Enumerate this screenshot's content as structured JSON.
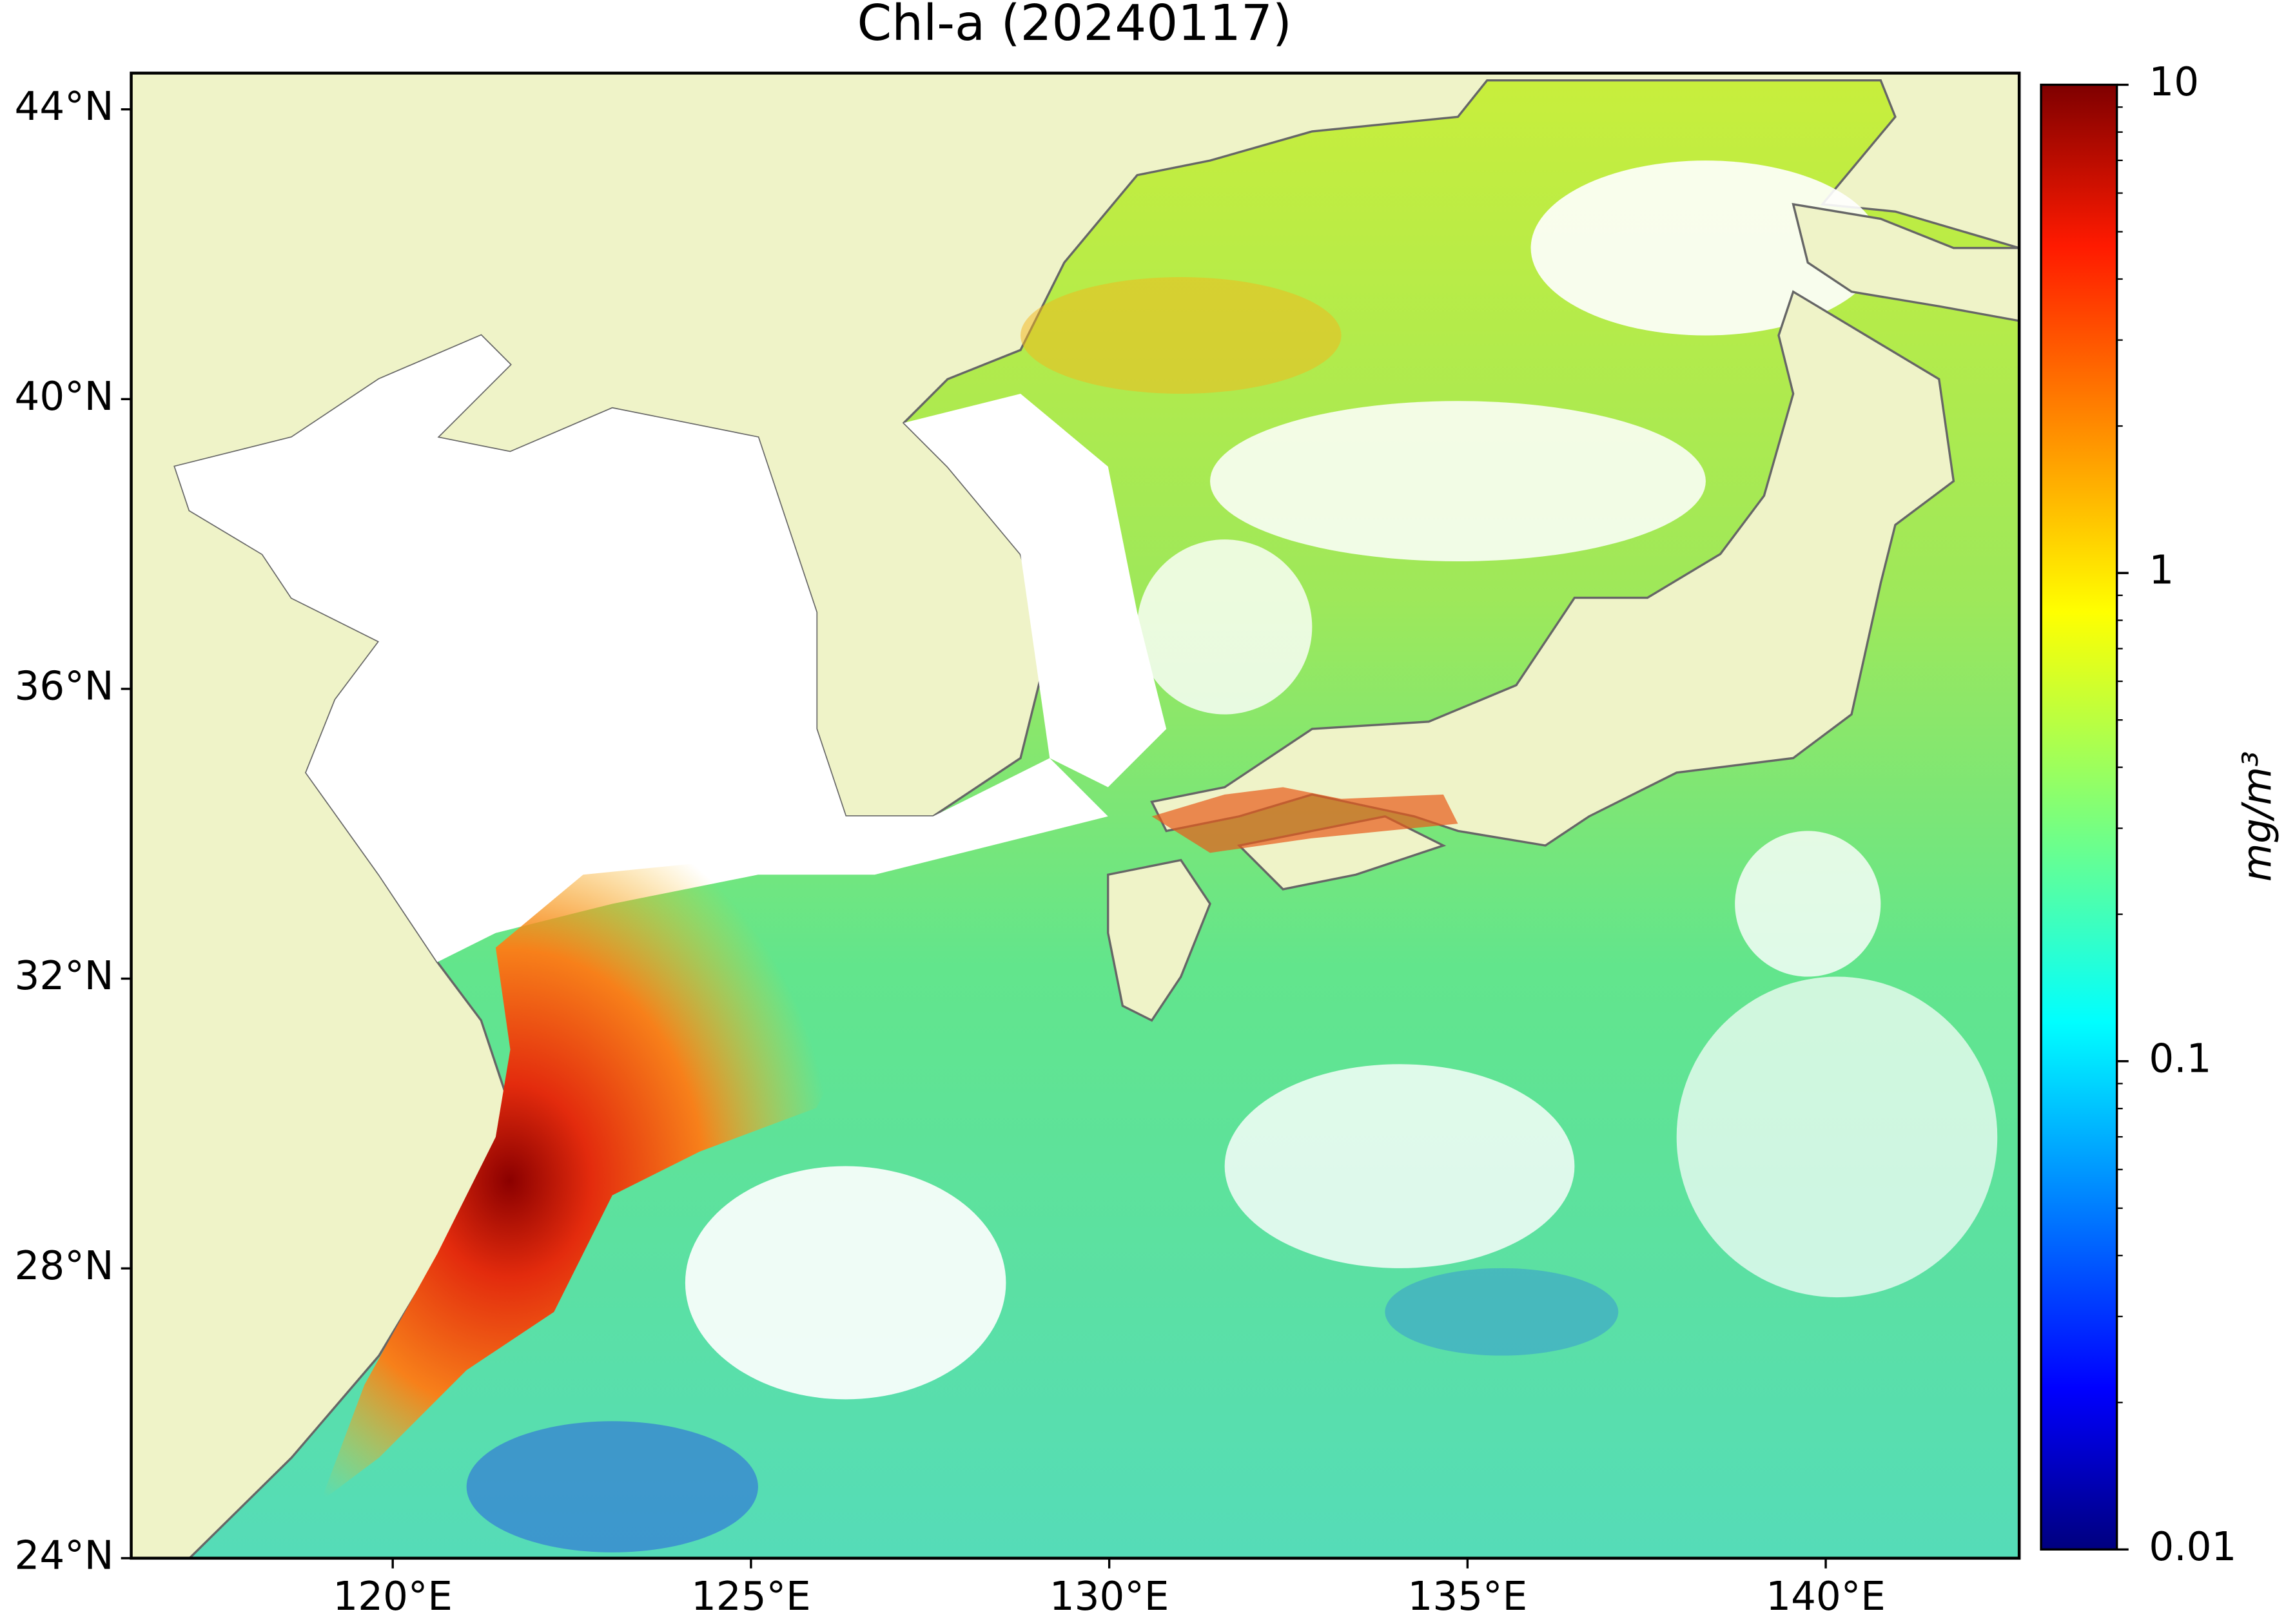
{
  "chart_data": {
    "type": "map",
    "title": "Chl-a (20240117)",
    "xlim": [
      116.35,
      142.7
    ],
    "ylim": [
      24,
      44.5
    ],
    "xticks": [
      {
        "value": 120,
        "label": "120°E"
      },
      {
        "value": 125,
        "label": "125°E"
      },
      {
        "value": 130,
        "label": "130°E"
      },
      {
        "value": 135,
        "label": "135°E"
      },
      {
        "value": 140,
        "label": "140°E"
      }
    ],
    "yticks": [
      {
        "value": 24,
        "label": "24°N"
      },
      {
        "value": 28,
        "label": "28°N"
      },
      {
        "value": 32,
        "label": "32°N"
      },
      {
        "value": 36,
        "label": "36°N"
      },
      {
        "value": 40,
        "label": "40°N"
      },
      {
        "value": 44,
        "label": "44°N"
      }
    ],
    "colorbar": {
      "lim": [
        0.01,
        10
      ],
      "ticks": [
        0.01,
        0.1,
        1,
        10
      ],
      "log": true,
      "label": "mg/m³"
    }
  }
}
